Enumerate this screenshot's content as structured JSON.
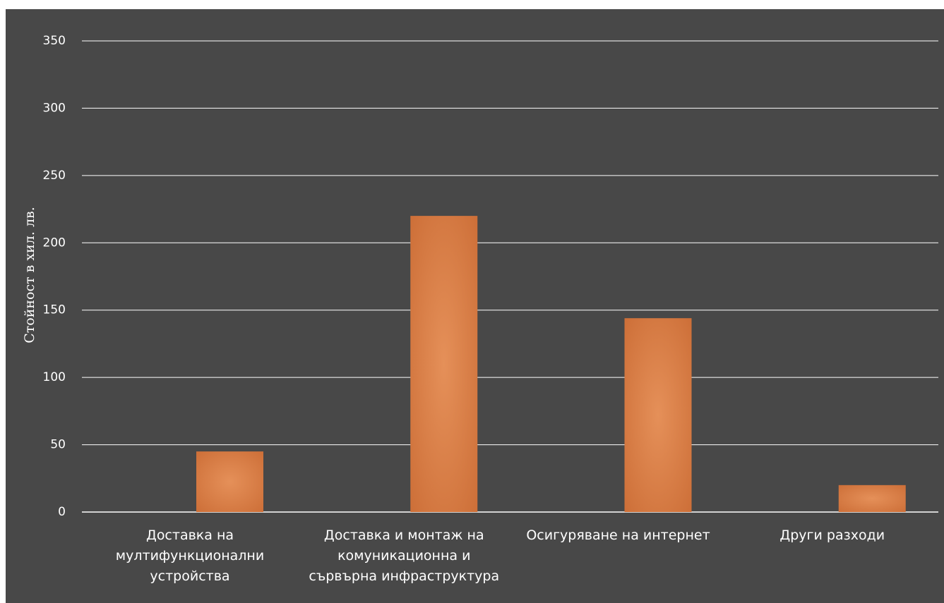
{
  "chart_data": {
    "type": "bar",
    "title": "",
    "xlabel": "",
    "ylabel": "Стойност в хил. лв.",
    "ylim": [
      0,
      350
    ],
    "yticks": [
      0,
      50,
      100,
      150,
      200,
      250,
      300,
      350
    ],
    "grid": true,
    "legend": "none",
    "categories": [
      [
        "Доставка на",
        "мултифункционални",
        "устройства"
      ],
      [
        "Доставка и монтаж на",
        "комуникационна и",
        "сървърна инфраструктура"
      ],
      [
        "Осигуряване на интернет"
      ],
      [
        "Други разходи"
      ]
    ],
    "values": [
      45,
      220,
      144,
      20
    ],
    "colors": {
      "background": "#484848",
      "bar_edge": "#cd6f38",
      "bar_center": "#e59059",
      "grid": "#ffffff",
      "text": "#ffffff"
    }
  }
}
